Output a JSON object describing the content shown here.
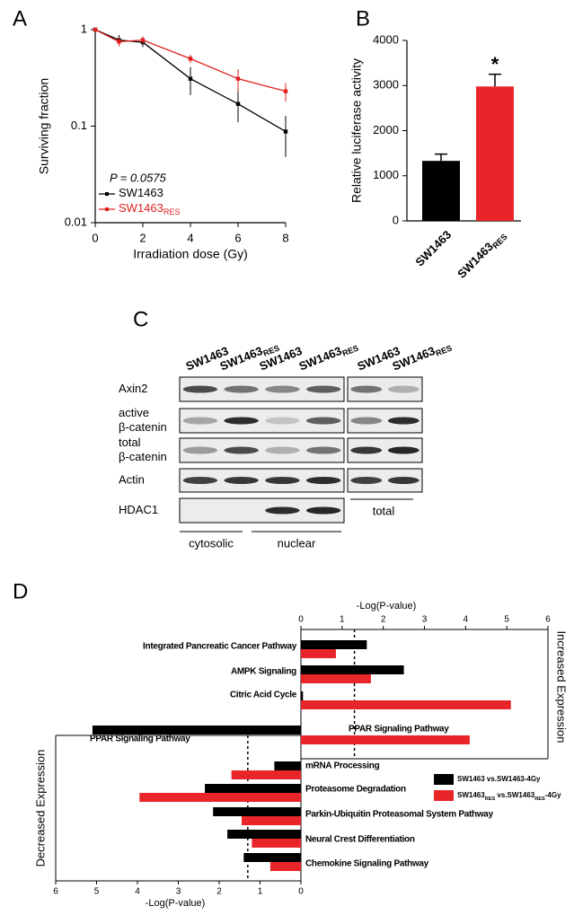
{
  "panel_labels": [
    "A",
    "B",
    "C",
    "D"
  ],
  "chart_data": [
    {
      "type": "line",
      "yscale": "log",
      "ylabel": "Surviving fraction",
      "xlabel": "Irradiation dose (Gy)",
      "annotation": "P = 0.0575",
      "x": [
        0,
        1,
        2,
        4,
        6,
        8
      ],
      "xlim": [
        0,
        8
      ],
      "xticks": [
        0,
        2,
        4,
        6,
        8
      ],
      "ylim": [
        0.01,
        1
      ],
      "yticks": [
        1,
        0.1,
        0.01
      ],
      "series": [
        {
          "name": "SW1463",
          "color": "#000000",
          "values": [
            1,
            0.78,
            0.74,
            0.31,
            0.17,
            0.088
          ],
          "errors": [
            null,
            0.1,
            0.08,
            0.1,
            0.06,
            0.04
          ]
        },
        {
          "name": "SW1463",
          "name_sub": "RES",
          "color": "#e0201f",
          "values": [
            1,
            0.75,
            0.78,
            0.5,
            0.31,
            0.23
          ],
          "errors": [
            null,
            0.08,
            0.07,
            0.05,
            0.08,
            0.05
          ]
        }
      ]
    },
    {
      "type": "bar",
      "ylabel": "Relative luciferase activity",
      "annotation": "*",
      "categories": [
        "SW1463",
        "SW1463"
      ],
      "category_subs": [
        null,
        "RES"
      ],
      "values": [
        1330,
        2980
      ],
      "errors": [
        150,
        270
      ],
      "colors": [
        "#000000",
        "#e8262a"
      ],
      "ylim": [
        0,
        4000
      ],
      "yticks": [
        0,
        1000,
        2000,
        3000,
        4000
      ]
    },
    {
      "type": "hbar",
      "side": "increased",
      "axis_label": "-Log(P-value)",
      "side_label": "Increased Expression",
      "categories": [
        "Integrated Pancreatic Cancer Pathway",
        "AMPK Signaling",
        "Citric Acid Cycle",
        "PPAR Signaling Pathway"
      ],
      "series": [
        {
          "name_parts": [
            "SW1463 vs.SW1463-4Gy"
          ],
          "color": "#000000",
          "values": [
            1.6,
            2.5,
            0.05,
            null
          ]
        },
        {
          "name_parts": [
            "SW1463",
            "RES",
            " vs.SW1463",
            "RES",
            "-4Gy"
          ],
          "color": "#e8262a",
          "values": [
            0.85,
            1.7,
            5.1,
            4.1
          ]
        }
      ],
      "xlim": [
        0,
        6
      ],
      "xticks": [
        0,
        1,
        2,
        3,
        4,
        5,
        6
      ],
      "threshold": 1.3
    },
    {
      "type": "hbar",
      "side": "decreased",
      "axis_label": "-Log(P-value)",
      "side_label": "Decreased Expression",
      "categories": [
        "PPAR Signaling Pathway",
        "mRNA Processing",
        "Proteasome Degradation",
        "Parkin-Ubiquitin Proteasomal System Pathway",
        "Neural Crest Differentiation",
        "Chemokine Signaling Pathway"
      ],
      "series": [
        {
          "color": "#000000",
          "values": [
            5.1,
            0.65,
            2.35,
            2.15,
            1.8,
            1.4
          ]
        },
        {
          "color": "#e8262a",
          "values": [
            null,
            1.7,
            3.95,
            1.45,
            1.2,
            0.75
          ]
        }
      ],
      "xlim": [
        0,
        6
      ],
      "xticks": [
        0,
        1,
        2,
        3,
        4,
        5,
        6
      ],
      "threshold": 1.3
    }
  ],
  "blot": {
    "columns": [
      {
        "text": "SW1463"
      },
      {
        "text": "SW1463",
        "sub": "RES"
      },
      {
        "text": "SW1463"
      },
      {
        "text": "SW1463",
        "sub": "RES"
      },
      {
        "text": "SW1463"
      },
      {
        "text": "SW1463",
        "sub": "RES"
      }
    ],
    "rows": [
      [
        "Axin2"
      ],
      [
        "active",
        "β-catenin"
      ],
      [
        "total",
        "β-catenin"
      ],
      [
        "Actin"
      ],
      [
        "HDAC1"
      ]
    ],
    "groups": [
      "cytosolic",
      "nuclear",
      "total"
    ]
  }
}
